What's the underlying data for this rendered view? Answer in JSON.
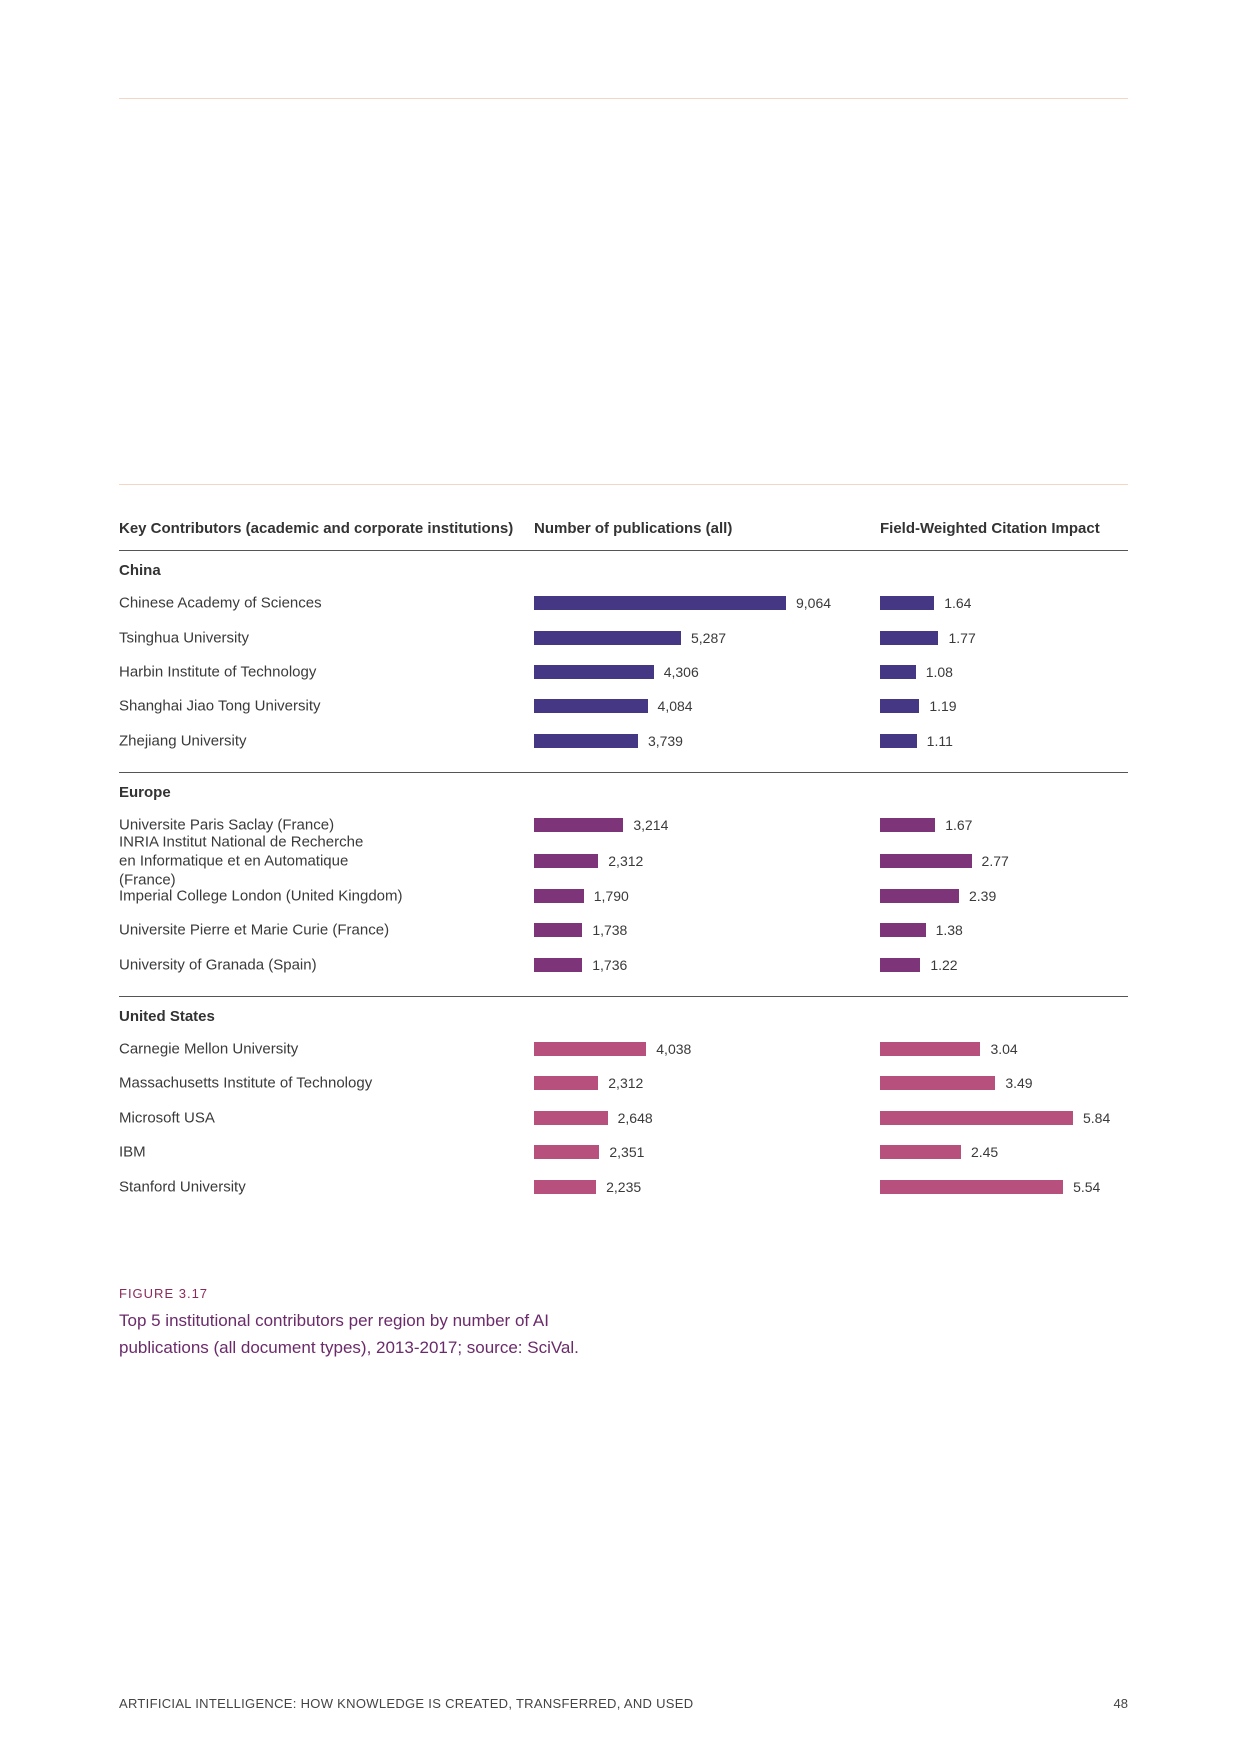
{
  "chart_data": {
    "type": "bar",
    "title": "",
    "column_headers": {
      "institution": "Key Contributors (academic and corporate institutions)",
      "publications": "Number of publications (all)",
      "fwci": "Field-Weighted Citation Impact"
    },
    "publications_max": 9064,
    "fwci_max": 5.84,
    "regions": [
      {
        "name": "China",
        "color": "#463784",
        "rows": [
          {
            "institution": "Chinese Academy of Sciences",
            "publications": 9064,
            "publications_label": "9,064",
            "fwci": 1.64,
            "fwci_label": "1.64"
          },
          {
            "institution": "Tsinghua University",
            "publications": 5287,
            "publications_label": "5,287",
            "fwci": 1.77,
            "fwci_label": "1.77"
          },
          {
            "institution": "Harbin Institute of Technology",
            "publications": 4306,
            "publications_label": "4,306",
            "fwci": 1.08,
            "fwci_label": "1.08"
          },
          {
            "institution": "Shanghai Jiao Tong University",
            "publications": 4084,
            "publications_label": "4,084",
            "fwci": 1.19,
            "fwci_label": "1.19"
          },
          {
            "institution": "Zhejiang University",
            "publications": 3739,
            "publications_label": "3,739",
            "fwci": 1.11,
            "fwci_label": "1.11"
          }
        ]
      },
      {
        "name": "Europe",
        "color": "#7e3478",
        "rows": [
          {
            "institution": "Universite Paris Saclay (France)",
            "publications": 3214,
            "publications_label": "3,214",
            "fwci": 1.67,
            "fwci_label": "1.67"
          },
          {
            "institution": "INRIA Institut National de Recherche en Informatique et en Automatique (France)",
            "publications": 2312,
            "publications_label": "2,312",
            "fwci": 2.77,
            "fwci_label": "2.77"
          },
          {
            "institution": "Imperial College London (United Kingdom)",
            "publications": 1790,
            "publications_label": "1,790",
            "fwci": 2.39,
            "fwci_label": "2.39"
          },
          {
            "institution": "Universite Pierre et Marie Curie (France)",
            "publications": 1738,
            "publications_label": "1,738",
            "fwci": 1.38,
            "fwci_label": "1.38"
          },
          {
            "institution": "University of Granada (Spain)",
            "publications": 1736,
            "publications_label": "1,736",
            "fwci": 1.22,
            "fwci_label": "1.22"
          }
        ]
      },
      {
        "name": "United States",
        "color": "#b8507e",
        "rows": [
          {
            "institution": "Carnegie Mellon University",
            "publications": 4038,
            "publications_label": "4,038",
            "fwci": 3.04,
            "fwci_label": "3.04"
          },
          {
            "institution": "Massachusetts Institute of Technology",
            "publications": 2312,
            "publications_label": "2,312",
            "fwci": 3.49,
            "fwci_label": "3.49"
          },
          {
            "institution": "Microsoft USA",
            "publications": 2648,
            "publications_label": "2,648",
            "fwci": 5.84,
            "fwci_label": "5.84"
          },
          {
            "institution": "IBM",
            "publications": 2351,
            "publications_label": "2,351",
            "fwci": 2.45,
            "fwci_label": "2.45"
          },
          {
            "institution": "Stanford University",
            "publications": 2235,
            "publications_label": "2,235",
            "fwci": 5.54,
            "fwci_label": "5.54"
          }
        ]
      }
    ]
  },
  "caption": {
    "label": "FIGURE 3.17",
    "text": "Top 5 institutional contributors per region by number of AI publications (all document types), 2013-2017; source: SciVal."
  },
  "footer": {
    "title": "ARTIFICIAL INTELLIGENCE: HOW KNOWLEDGE IS CREATED, TRANSFERRED, AND USED",
    "page": "48"
  }
}
